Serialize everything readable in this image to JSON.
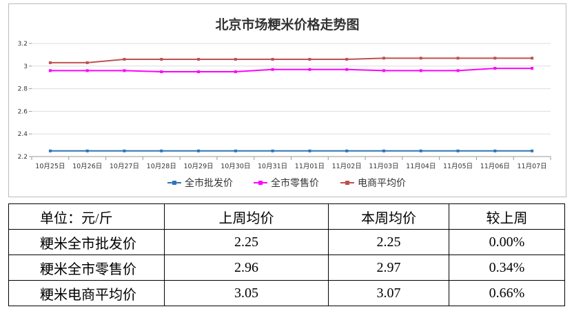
{
  "chart_data": {
    "type": "line",
    "title": "北京市场粳米价格走势图",
    "categories": [
      "10月25日",
      "10月26日",
      "10月27日",
      "10月28日",
      "10月29日",
      "10月30日",
      "10月31日",
      "11月01日",
      "11月02日",
      "11月03日",
      "11月04日",
      "11月05日",
      "11月06日",
      "11月07日"
    ],
    "series": [
      {
        "name": "全市批发价",
        "color": "#2e75b6",
        "values": [
          2.25,
          2.25,
          2.25,
          2.25,
          2.25,
          2.25,
          2.25,
          2.25,
          2.25,
          2.25,
          2.25,
          2.25,
          2.25,
          2.25
        ]
      },
      {
        "name": "全市零售价",
        "color": "#ff00ff",
        "values": [
          2.96,
          2.96,
          2.96,
          2.95,
          2.95,
          2.95,
          2.97,
          2.97,
          2.97,
          2.96,
          2.96,
          2.96,
          2.98,
          2.98
        ]
      },
      {
        "name": "电商平均价",
        "color": "#c0504d",
        "values": [
          3.03,
          3.03,
          3.06,
          3.06,
          3.06,
          3.06,
          3.06,
          3.06,
          3.06,
          3.07,
          3.07,
          3.07,
          3.07,
          3.07
        ]
      }
    ],
    "ylim": [
      2.2,
      3.2
    ],
    "yticks": [
      2.2,
      2.4,
      2.6,
      2.8,
      3,
      3.2
    ],
    "grid": true,
    "legend": "bottom"
  },
  "table": {
    "header": [
      "单位：元/斤",
      "上周均价",
      "本周均价",
      "较上周"
    ],
    "rows": [
      [
        "粳米全市批发价",
        "2.25",
        "2.25",
        "0.00%"
      ],
      [
        "粳米全市零售价",
        "2.96",
        "2.97",
        "0.34%"
      ],
      [
        "粳米电商平均价",
        "3.05",
        "3.07",
        "0.66%"
      ]
    ]
  }
}
